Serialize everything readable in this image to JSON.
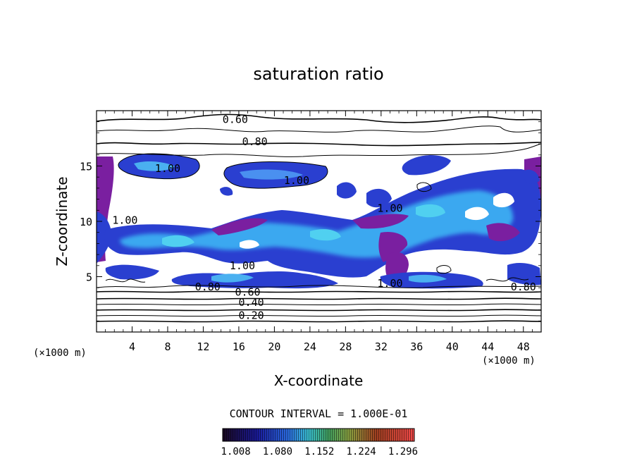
{
  "chart_data": {
    "type": "contour",
    "title": "saturation ratio",
    "xlabel": "X-coordinate",
    "ylabel": "Z-coordinate",
    "x_unit": "(×1000 m)",
    "y_unit": "(×1000 m)",
    "xlim": [
      0,
      50
    ],
    "ylim": [
      0,
      20
    ],
    "x_ticks": [
      "4",
      "8",
      "12",
      "16",
      "20",
      "24",
      "28",
      "32",
      "36",
      "40",
      "44",
      "48"
    ],
    "y_ticks": [
      "5",
      "10",
      "15"
    ],
    "contour_interval_text": "CONTOUR INTERVAL = 1.000E-01",
    "colorbar": {
      "min": 1.0,
      "max": 1.33,
      "tick_labels": [
        "1.008",
        "1.080",
        "1.152",
        "1.224",
        "1.296"
      ],
      "colors": [
        "#2a0a3a",
        "#1a1a9a",
        "#2a6ae0",
        "#3ac0e0",
        "#3aa060",
        "#a0c040",
        "#c04020",
        "#e03a3a"
      ]
    },
    "contour_labels": [
      {
        "text": "0.60",
        "x": 15.6,
        "y": 19.0
      },
      {
        "text": "0.80",
        "x": 17.8,
        "y": 17.0
      },
      {
        "text": "1.00",
        "x": 8.0,
        "y": 14.6
      },
      {
        "text": "1.00",
        "x": 22.5,
        "y": 13.5
      },
      {
        "text": "1.00",
        "x": 33.0,
        "y": 11.0
      },
      {
        "text": "1.00",
        "x": 3.2,
        "y": 9.9
      },
      {
        "text": "1.00",
        "x": 16.4,
        "y": 5.8
      },
      {
        "text": "1.00",
        "x": 33.0,
        "y": 4.2
      },
      {
        "text": "0.80",
        "x": 12.5,
        "y": 3.9
      },
      {
        "text": "0.60",
        "x": 17.0,
        "y": 3.4
      },
      {
        "text": "0.40",
        "x": 17.4,
        "y": 2.5
      },
      {
        "text": "0.20",
        "x": 17.4,
        "y": 1.3
      },
      {
        "text": "0.80",
        "x": 48.0,
        "y": 3.9
      }
    ],
    "contour_levels": [
      0.2,
      0.4,
      0.6,
      0.8,
      1.0
    ],
    "fill_regions_note_colors": {
      "deep": "#7a1fa0",
      "mid": "#2a4ad8",
      "high": "#40c0e8",
      "light": "#6aa0ff"
    }
  }
}
